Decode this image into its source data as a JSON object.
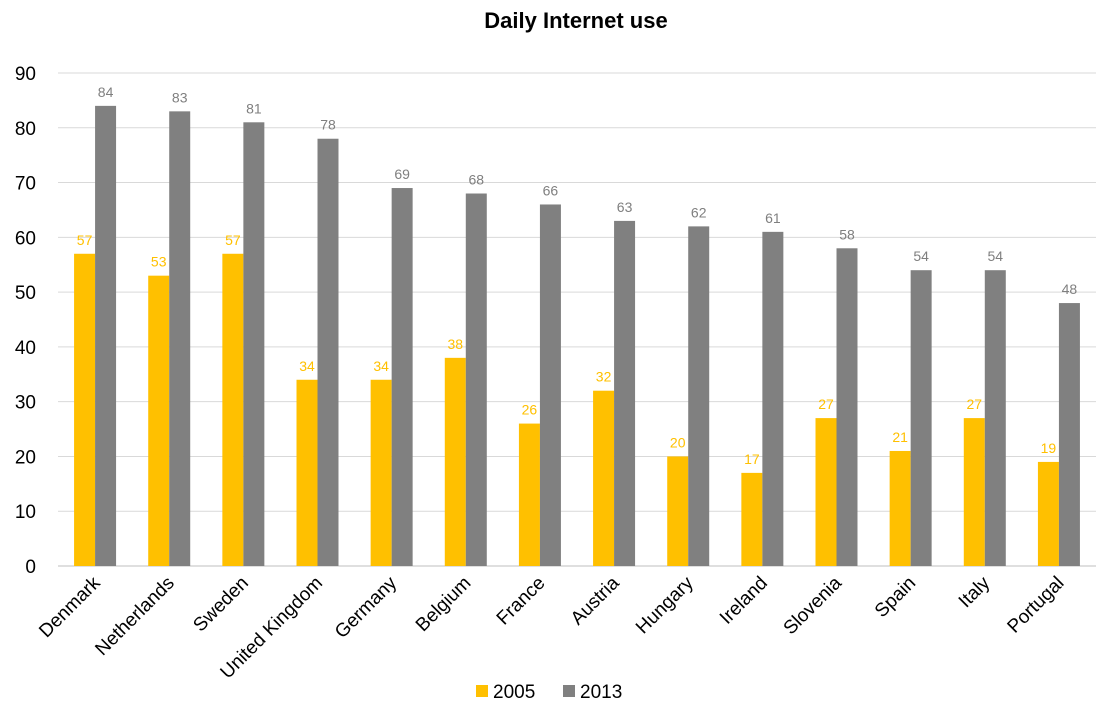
{
  "chart_data": {
    "type": "bar",
    "title": "Daily Internet use",
    "xlabel": "",
    "ylabel": "",
    "ylim": [
      0,
      90
    ],
    "yticks": [
      0,
      10,
      20,
      30,
      40,
      50,
      60,
      70,
      80,
      90
    ],
    "grid": true,
    "legend_position": "bottom",
    "categories": [
      "Denmark",
      "Netherlands",
      "Sweden",
      "United Kingdom",
      "Germany",
      "Belgium",
      "France",
      "Austria",
      "Hungary",
      "Ireland",
      "Slovenia",
      "Spain",
      "Italy",
      "Portugal"
    ],
    "series": [
      {
        "name": "2005",
        "color": "#ffc000",
        "label_color": "#ffc000",
        "values": [
          57,
          53,
          57,
          34,
          34,
          38,
          26,
          32,
          20,
          17,
          27,
          21,
          27,
          19
        ]
      },
      {
        "name": "2013",
        "color": "#808080",
        "label_color": "#7f7f7f",
        "values": [
          84,
          83,
          81,
          78,
          69,
          68,
          66,
          63,
          62,
          61,
          58,
          54,
          54,
          48
        ]
      }
    ]
  }
}
